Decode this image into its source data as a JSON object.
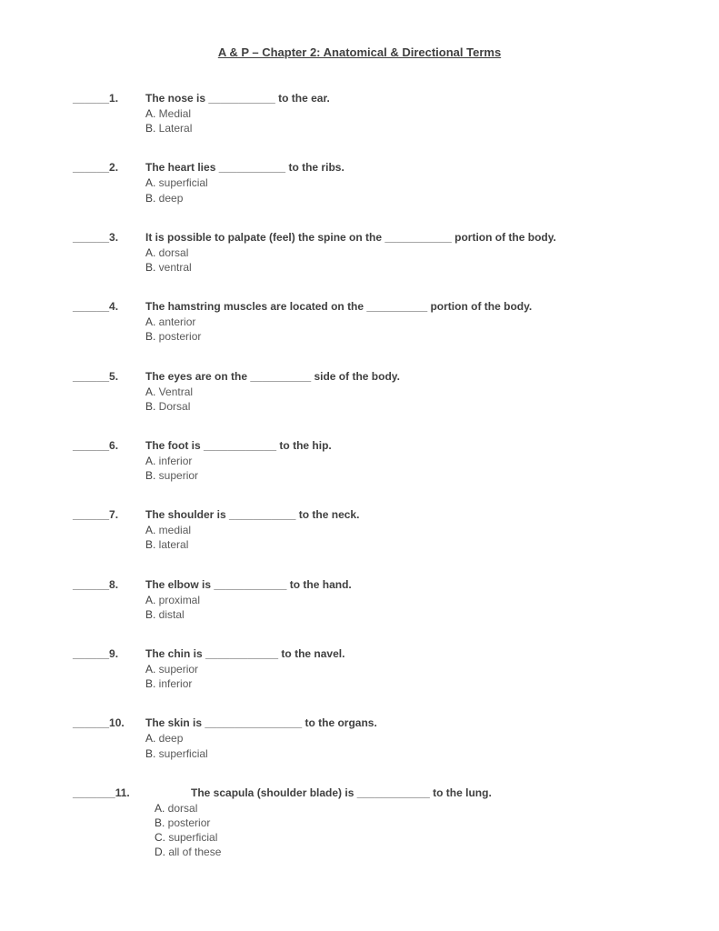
{
  "title": "A & P – Chapter 2: Anatomical & Directional Terms",
  "blank": "______",
  "questions": [
    {
      "number": "1.",
      "text": "The nose is ___________ to the ear.",
      "options": [
        {
          "letter": "A.",
          "text": "Medial"
        },
        {
          "letter": "B.",
          "text": "Lateral"
        }
      ]
    },
    {
      "number": "2.",
      "text": "The heart lies ___________ to the ribs.",
      "options": [
        {
          "letter": "A.",
          "text": "superficial"
        },
        {
          "letter": "B.",
          "text": "deep"
        }
      ]
    },
    {
      "number": "3.",
      "text": "It is possible to palpate (feel) the spine on the ___________ portion of the body.",
      "options": [
        {
          "letter": "A.",
          "text": "dorsal"
        },
        {
          "letter": "B.",
          "text": "ventral"
        }
      ]
    },
    {
      "number": "4.",
      "text": "The hamstring muscles are located on the __________ portion of the body.",
      "options": [
        {
          "letter": "A.",
          "text": "anterior"
        },
        {
          "letter": "B.",
          "text": "posterior"
        }
      ]
    },
    {
      "number": "5.",
      "text": "The eyes are on the __________ side of the body.",
      "options": [
        {
          "letter": "A.",
          "text": "Ventral"
        },
        {
          "letter": "B.",
          "text": "Dorsal"
        }
      ]
    },
    {
      "number": "6.",
      "text": "The foot is ____________ to the hip.",
      "options": [
        {
          "letter": "A.",
          "text": "inferior"
        },
        {
          "letter": "B.",
          "text": "superior"
        }
      ]
    },
    {
      "number": "7.",
      "text": "The shoulder is ___________ to the neck.",
      "options": [
        {
          "letter": "A.",
          "text": "medial"
        },
        {
          "letter": "B.",
          "text": "lateral"
        }
      ]
    },
    {
      "number": "8.",
      "text": "The elbow is ____________ to the hand.",
      "options": [
        {
          "letter": "A.",
          "text": "proximal"
        },
        {
          "letter": "B.",
          "text": "distal"
        }
      ]
    },
    {
      "number": "9.",
      "text": "The chin is ____________ to the navel.",
      "options": [
        {
          "letter": "A.",
          "text": "superior"
        },
        {
          "letter": "B.",
          "text": "inferior"
        }
      ]
    },
    {
      "number": "10.",
      "text": "The skin is ________________ to the organs.",
      "options": [
        {
          "letter": "A.",
          "text": "deep"
        },
        {
          "letter": "B.",
          "text": "superficial"
        }
      ]
    },
    {
      "number": "11.",
      "text": "The scapula (shoulder blade) is ____________ to the lung.",
      "indented": true,
      "options": [
        {
          "letter": "A.",
          "text": "dorsal"
        },
        {
          "letter": "B.",
          "text": "posterior"
        },
        {
          "letter": "C.",
          "text": "superficial"
        },
        {
          "letter": "D.",
          "text": "all of these"
        }
      ]
    }
  ]
}
